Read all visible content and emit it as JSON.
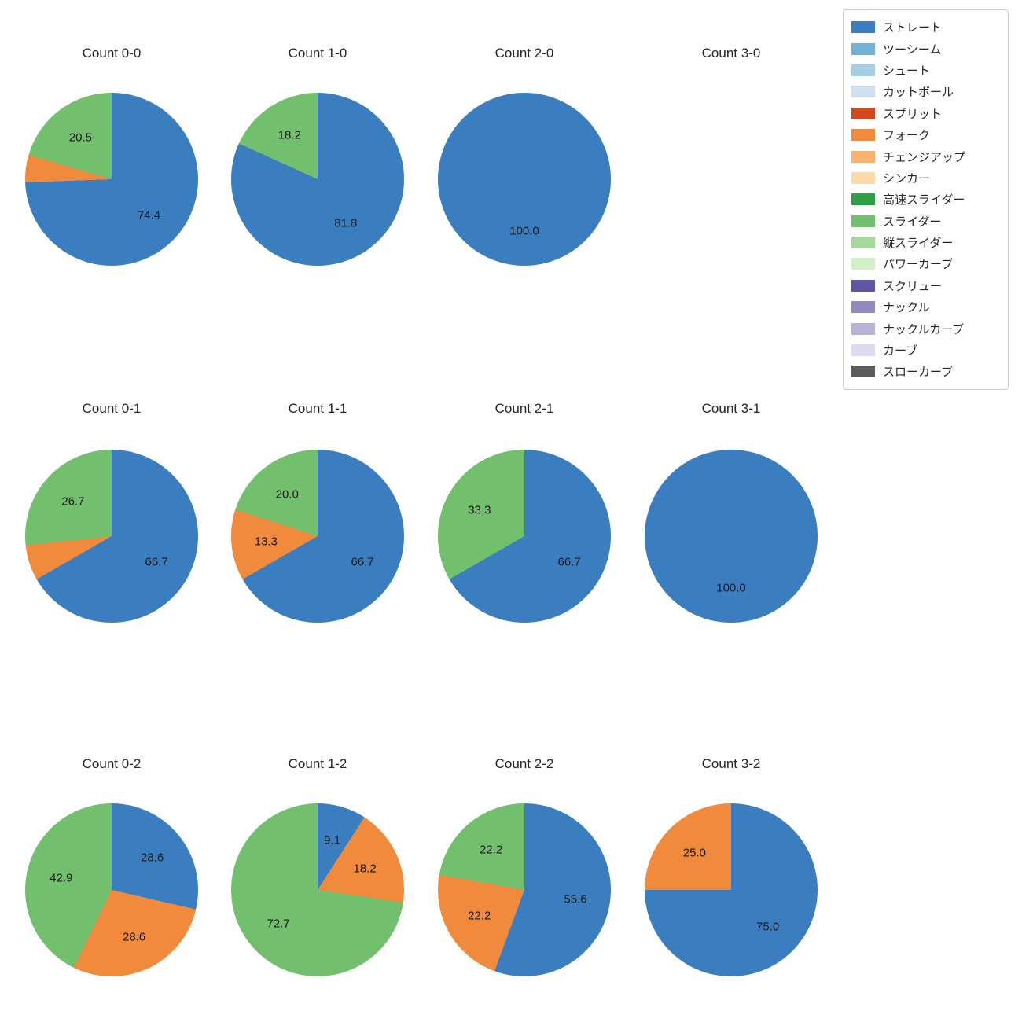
{
  "figure": {
    "background": "#ffffff"
  },
  "legend": {
    "items": [
      {
        "label": "ストレート",
        "color": "#3a7ebf"
      },
      {
        "label": "ツーシーム",
        "color": "#72b2d7"
      },
      {
        "label": "シュート",
        "color": "#a6cee3"
      },
      {
        "label": "カットボール",
        "color": "#cfdff0"
      },
      {
        "label": "スプリット",
        "color": "#d1491c"
      },
      {
        "label": "フォーク",
        "color": "#f08a3c"
      },
      {
        "label": "チェンジアップ",
        "color": "#f6b26e"
      },
      {
        "label": "シンカー",
        "color": "#fcd9a8"
      },
      {
        "label": "高速スライダー",
        "color": "#2f9e44"
      },
      {
        "label": "スライダー",
        "color": "#72bf6e"
      },
      {
        "label": "縦スライダー",
        "color": "#a5d99c"
      },
      {
        "label": "パワーカーブ",
        "color": "#d2efc8"
      },
      {
        "label": "スクリュー",
        "color": "#5f55a5"
      },
      {
        "label": "ナックル",
        "color": "#9289c0"
      },
      {
        "label": "ナックルカーブ",
        "color": "#b9b3d8"
      },
      {
        "label": "カーブ",
        "color": "#dcdaec"
      },
      {
        "label": "スローカーブ",
        "color": "#5b5b5b"
      }
    ]
  },
  "chart_data": [
    {
      "type": "pie",
      "title": "Count 0-0",
      "row": 0,
      "col": 0,
      "slices": [
        {
          "name": "ストレート",
          "value": 74.4,
          "label": "74.4"
        },
        {
          "name": "フォーク",
          "value": 5.1,
          "label": null
        },
        {
          "name": "スライダー",
          "value": 20.5,
          "label": "20.5"
        }
      ]
    },
    {
      "type": "pie",
      "title": "Count 1-0",
      "row": 0,
      "col": 1,
      "slices": [
        {
          "name": "ストレート",
          "value": 81.8,
          "label": "81.8"
        },
        {
          "name": "スライダー",
          "value": 18.2,
          "label": "18.2"
        }
      ]
    },
    {
      "type": "pie",
      "title": "Count 2-0",
      "row": 0,
      "col": 2,
      "slices": [
        {
          "name": "ストレート",
          "value": 100.0,
          "label": "100.0"
        }
      ]
    },
    {
      "type": "pie",
      "title": "Count 3-0",
      "row": 0,
      "col": 3,
      "slices": []
    },
    {
      "type": "pie",
      "title": "Count 0-1",
      "row": 1,
      "col": 0,
      "slices": [
        {
          "name": "ストレート",
          "value": 66.7,
          "label": "66.7"
        },
        {
          "name": "フォーク",
          "value": 6.6,
          "label": null
        },
        {
          "name": "スライダー",
          "value": 26.7,
          "label": "26.7"
        }
      ]
    },
    {
      "type": "pie",
      "title": "Count 1-1",
      "row": 1,
      "col": 1,
      "slices": [
        {
          "name": "ストレート",
          "value": 66.7,
          "label": "66.7"
        },
        {
          "name": "フォーク",
          "value": 13.3,
          "label": "13.3"
        },
        {
          "name": "スライダー",
          "value": 20.0,
          "label": "20.0"
        }
      ]
    },
    {
      "type": "pie",
      "title": "Count 2-1",
      "row": 1,
      "col": 2,
      "slices": [
        {
          "name": "ストレート",
          "value": 66.7,
          "label": "66.7"
        },
        {
          "name": "スライダー",
          "value": 33.3,
          "label": "33.3"
        }
      ]
    },
    {
      "type": "pie",
      "title": "Count 3-1",
      "row": 1,
      "col": 3,
      "slices": [
        {
          "name": "ストレート",
          "value": 100.0,
          "label": "100.0"
        }
      ]
    },
    {
      "type": "pie",
      "title": "Count 0-2",
      "row": 2,
      "col": 0,
      "slices": [
        {
          "name": "ストレート",
          "value": 28.6,
          "label": "28.6"
        },
        {
          "name": "フォーク",
          "value": 28.6,
          "label": "28.6"
        },
        {
          "name": "スライダー",
          "value": 42.9,
          "label": "42.9"
        }
      ]
    },
    {
      "type": "pie",
      "title": "Count 1-2",
      "row": 2,
      "col": 1,
      "slices": [
        {
          "name": "ストレート",
          "value": 9.1,
          "label": "9.1"
        },
        {
          "name": "フォーク",
          "value": 18.2,
          "label": "18.2"
        },
        {
          "name": "スライダー",
          "value": 72.7,
          "label": "72.7"
        }
      ]
    },
    {
      "type": "pie",
      "title": "Count 2-2",
      "row": 2,
      "col": 2,
      "slices": [
        {
          "name": "ストレート",
          "value": 55.6,
          "label": "55.6"
        },
        {
          "name": "フォーク",
          "value": 22.2,
          "label": "22.2"
        },
        {
          "name": "スライダー",
          "value": 22.2,
          "label": "22.2"
        }
      ]
    },
    {
      "type": "pie",
      "title": "Count 3-2",
      "row": 2,
      "col": 3,
      "slices": [
        {
          "name": "ストレート",
          "value": 75.0,
          "label": "75.0"
        },
        {
          "name": "フォーク",
          "value": 25.0,
          "label": "25.0"
        }
      ]
    }
  ]
}
